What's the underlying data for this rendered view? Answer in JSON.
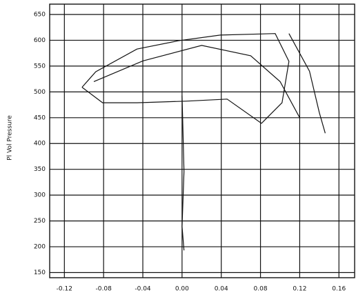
{
  "chart_data": {
    "type": "line",
    "y_label": "Pl Vol Pressure",
    "color": "#111111",
    "grid": true,
    "x": [
      -0.102,
      -0.088,
      -0.046,
      -0.004,
      0.039,
      0.095,
      0.109,
      0.102,
      0.081,
      0.046,
      0.004,
      -0.046,
      -0.081,
      -0.102,
      null,
      0,
      0.002,
      0,
      0.002,
      null,
      0.109,
      0.13,
      0.14,
      0.146,
      null,
      -0.09,
      -0.04,
      0.02,
      0.07,
      0.1,
      0.12
    ],
    "values": [
      509,
      539,
      583,
      599,
      610,
      613,
      559,
      479,
      439,
      486,
      482,
      479,
      479,
      509,
      null,
      493,
      346,
      239,
      193,
      null,
      613,
      540,
      460,
      420,
      null,
      520,
      560,
      590,
      570,
      520,
      450
    ],
    "xlim": [
      -0.135,
      0.176
    ],
    "ylim": [
      140,
      670
    ],
    "xticks": [
      -0.12,
      -0.08,
      -0.04,
      {
        "value": 0,
        "label": "0.00"
      },
      0.04,
      0.08,
      0.12,
      0.16
    ],
    "yticks": [
      650,
      600,
      550,
      500,
      450,
      400,
      350,
      300,
      250,
      200,
      150
    ]
  }
}
